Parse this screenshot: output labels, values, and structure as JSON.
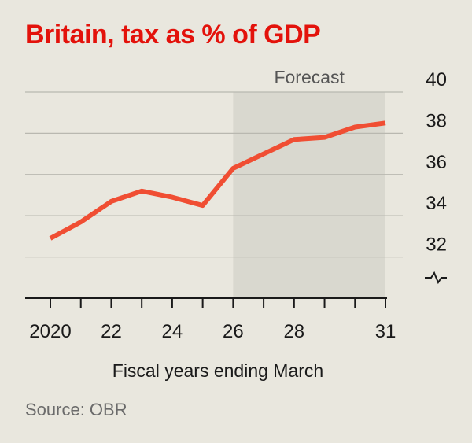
{
  "chart_data": {
    "type": "line",
    "title": "Britain, tax as % of GDP",
    "source": "Source: OBR",
    "xlabel": "Fiscal years ending March",
    "ylabel": "",
    "x": [
      2020,
      2021,
      2022,
      2023,
      2024,
      2025,
      2026,
      2027,
      2028,
      2029,
      2030,
      2031
    ],
    "series": [
      {
        "name": "Tax as % of GDP",
        "color": "#f04e33",
        "values": [
          32.9,
          33.7,
          34.7,
          35.2,
          34.9,
          34.5,
          36.3,
          37.0,
          37.7,
          37.8,
          38.3,
          38.5
        ]
      }
    ],
    "ylim": [
      30,
      40
    ],
    "yticks": [
      {
        "value": 32,
        "label": "32"
      },
      {
        "value": 34,
        "label": "34"
      },
      {
        "value": 36,
        "label": "36"
      },
      {
        "value": 38,
        "label": "38"
      },
      {
        "value": 40,
        "label": "40"
      }
    ],
    "xticks": [
      {
        "value": 2020,
        "label": "2020"
      },
      {
        "value": 2021,
        "label": ""
      },
      {
        "value": 2022,
        "label": "22"
      },
      {
        "value": 2023,
        "label": ""
      },
      {
        "value": 2024,
        "label": "24"
      },
      {
        "value": 2025,
        "label": ""
      },
      {
        "value": 2026,
        "label": "26"
      },
      {
        "value": 2027,
        "label": ""
      },
      {
        "value": 2028,
        "label": "28"
      },
      {
        "value": 2029,
        "label": ""
      },
      {
        "value": 2030,
        "label": ""
      },
      {
        "value": 2031,
        "label": "31"
      }
    ],
    "xlim": [
      2020,
      2031
    ],
    "forecast": {
      "label": "Forecast",
      "start": 2026,
      "end": 2031
    },
    "axis_break": true,
    "grid": true,
    "colors": {
      "title": "#e3120b",
      "line": "#f04e33",
      "forecast_shade": "#d9d8cf",
      "grid": "#b9b8b0",
      "background": "#e9e7de"
    }
  }
}
